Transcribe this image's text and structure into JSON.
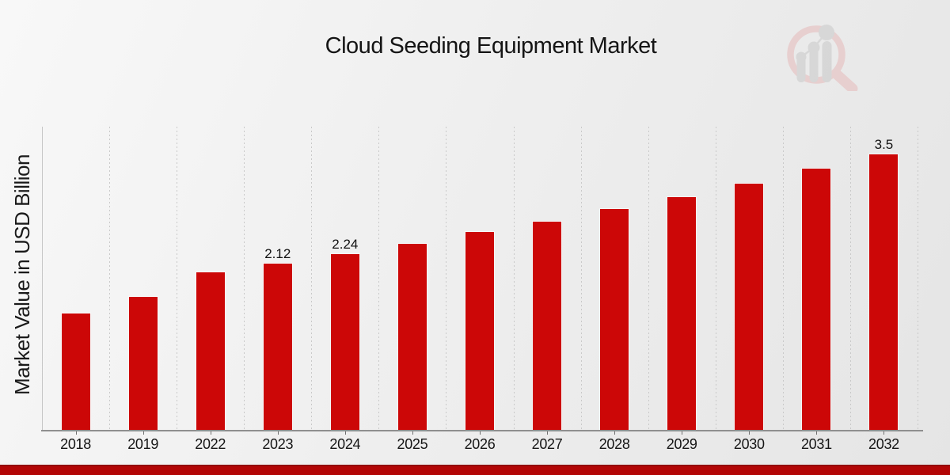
{
  "header": {
    "logo_icon": "magnifier-bar-chart-logo"
  },
  "colors": {
    "bar": "#cc0707",
    "footer_stripe": "#b30606",
    "footer_stripe_edge": "#930b0b",
    "gridline": "#c9c9c9",
    "axis": "#8f8f8f",
    "text": "#161616",
    "logo_gray": "#d5d5d5",
    "logo_pink": "#e7cdcd"
  },
  "chart_data": {
    "type": "bar",
    "title": "Cloud Seeding Equipment Market",
    "xlabel": "",
    "ylabel": "Market Value in USD Billion",
    "categories": [
      "2018",
      "2019",
      "2022",
      "2023",
      "2024",
      "2025",
      "2026",
      "2027",
      "2028",
      "2029",
      "2030",
      "2031",
      "2032"
    ],
    "values": [
      1.49,
      1.7,
      2.01,
      2.12,
      2.24,
      2.37,
      2.52,
      2.65,
      2.81,
      2.96,
      3.13,
      3.32,
      3.5
    ],
    "bar_labels": [
      "",
      "",
      "",
      "2.12",
      "2.24",
      "",
      "",
      "",
      "",
      "",
      "",
      "",
      "3.5"
    ],
    "ylim": [
      0,
      3.855
    ],
    "grid": "vertical-dotted",
    "legend": "none",
    "bar_color": "#cc0707"
  }
}
